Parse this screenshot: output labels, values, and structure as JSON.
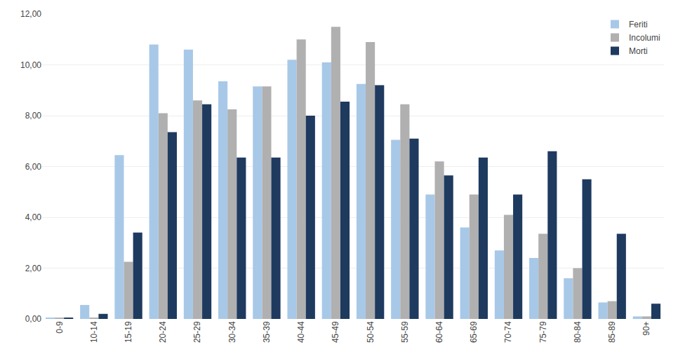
{
  "chart_data": {
    "type": "bar",
    "categories": [
      "0-9",
      "10-14",
      "15-19",
      "20-24",
      "25-29",
      "30-34",
      "35-39",
      "40-44",
      "45-49",
      "50-54",
      "55-59",
      "60-64",
      "65-69",
      "70-74",
      "75-79",
      "80-84",
      "85-89",
      "90+"
    ],
    "series": [
      {
        "name": "Feriti",
        "color": "#a8c8e8",
        "values": [
          0.05,
          0.55,
          6.45,
          10.8,
          10.6,
          9.35,
          9.15,
          10.2,
          10.1,
          9.25,
          7.05,
          4.9,
          3.6,
          2.7,
          2.4,
          1.6,
          0.65,
          0.1
        ]
      },
      {
        "name": "Incolumi",
        "color": "#b0b0b0",
        "values": [
          0.05,
          0.05,
          2.25,
          8.1,
          8.6,
          8.25,
          9.15,
          11.0,
          11.5,
          10.9,
          8.45,
          6.2,
          4.9,
          4.1,
          3.35,
          2.0,
          0.7,
          0.1
        ]
      },
      {
        "name": "Morti",
        "color": "#1e3a5f",
        "values": [
          0.05,
          0.2,
          3.4,
          7.35,
          8.45,
          6.35,
          6.35,
          8.0,
          8.55,
          9.2,
          7.1,
          5.65,
          6.35,
          4.9,
          6.6,
          5.5,
          3.35,
          0.6
        ]
      }
    ],
    "ylim": [
      0,
      12.0
    ],
    "yticks": [
      {
        "value": 0.0,
        "label": "0,00"
      },
      {
        "value": 2.0,
        "label": "2,00"
      },
      {
        "value": 4.0,
        "label": "4,00"
      },
      {
        "value": 6.0,
        "label": "6,00"
      },
      {
        "value": 8.0,
        "label": "8,00"
      },
      {
        "value": 10.0,
        "label": "10,00"
      },
      {
        "value": 12.0,
        "label": "12,00"
      }
    ],
    "grid": true,
    "legend": "upper right"
  }
}
